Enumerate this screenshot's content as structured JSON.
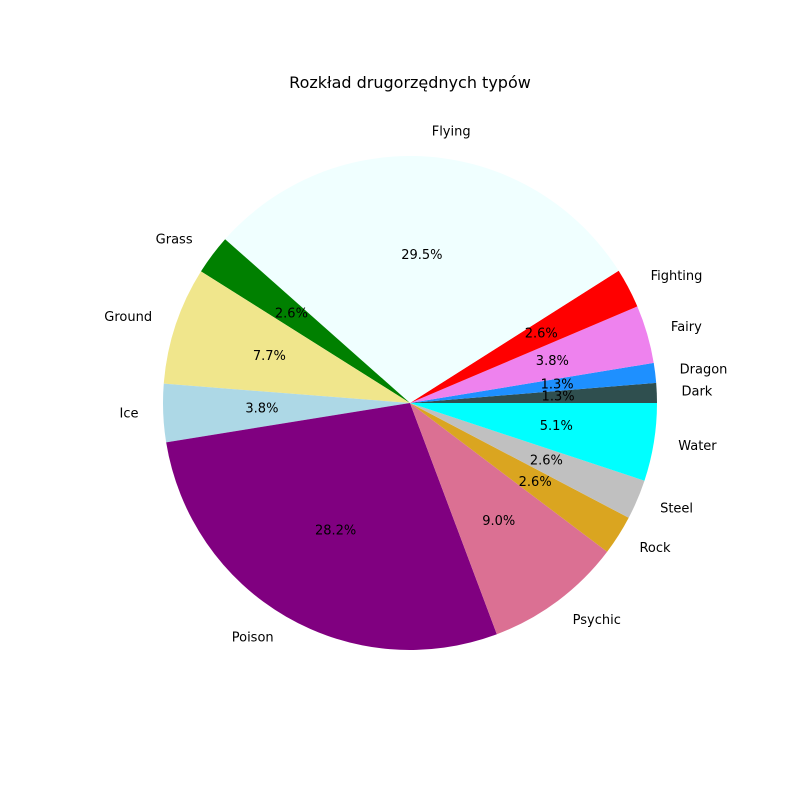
{
  "chart_data": {
    "type": "pie",
    "title": "Rozkład drugorzędnych typów",
    "slices": [
      {
        "label": "Dark",
        "value": 1.3,
        "pct_text": "1.3%",
        "color": "#2f4f4f"
      },
      {
        "label": "Dragon",
        "value": 1.3,
        "pct_text": "1.3%",
        "color": "#1e90ff"
      },
      {
        "label": "Fairy",
        "value": 3.8,
        "pct_text": "3.8%",
        "color": "#ee82ee"
      },
      {
        "label": "Fighting",
        "value": 2.6,
        "pct_text": "2.6%",
        "color": "#ff0000"
      },
      {
        "label": "Flying",
        "value": 29.5,
        "pct_text": "29.5%",
        "color": "#f0ffff"
      },
      {
        "label": "Grass",
        "value": 2.6,
        "pct_text": "2.6%",
        "color": "#008000"
      },
      {
        "label": "Ground",
        "value": 7.7,
        "pct_text": "7.7%",
        "color": "#f0e68c"
      },
      {
        "label": "Ice",
        "value": 3.8,
        "pct_text": "3.8%",
        "color": "#add8e6"
      },
      {
        "label": "Poison",
        "value": 28.2,
        "pct_text": "28.2%",
        "color": "#800080"
      },
      {
        "label": "Psychic",
        "value": 9.0,
        "pct_text": "9.0%",
        "color": "#db7093"
      },
      {
        "label": "Rock",
        "value": 2.6,
        "pct_text": "2.6%",
        "color": "#daa520"
      },
      {
        "label": "Steel",
        "value": 2.6,
        "pct_text": "2.6%",
        "color": "#c0c0c0"
      },
      {
        "label": "Water",
        "value": 5.1,
        "pct_text": "5.1%",
        "color": "#00ffff"
      }
    ]
  }
}
